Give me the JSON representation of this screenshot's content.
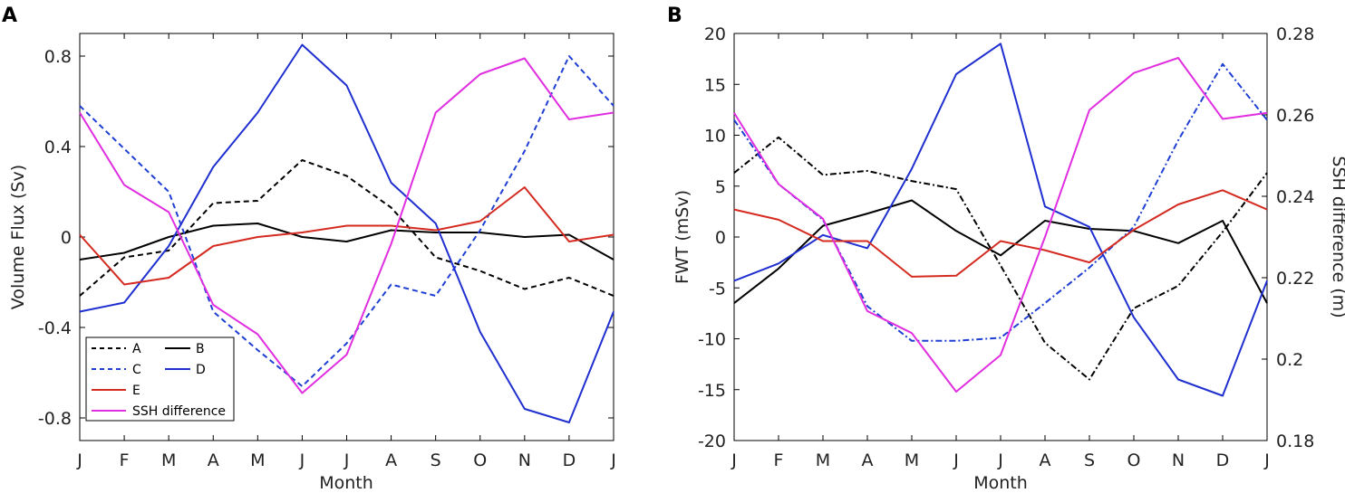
{
  "colors": {
    "A": "#000000",
    "B": "#000000",
    "C": "#1f3fd4",
    "D": "#1f2fd0",
    "E": "#d42a20",
    "SSH": "#e02ee0",
    "axis": "#000000"
  },
  "chart_data": [
    {
      "panel": "A",
      "type": "line",
      "xlabel": "Month",
      "ylabel": "Volume Flux (Sv)",
      "categories": [
        "J",
        "F",
        "M",
        "A",
        "M",
        "J",
        "J",
        "A",
        "S",
        "O",
        "N",
        "D",
        "J"
      ],
      "ylim": [
        -0.9,
        0.9
      ],
      "yticks": [
        -0.8,
        -0.4,
        0,
        0.4,
        0.8
      ],
      "ytick_labels": [
        "-0.8",
        "-0.4",
        "0",
        "0.4",
        "0.8"
      ],
      "series": [
        {
          "name": "A",
          "style": "dashed",
          "color": "#000000",
          "values": [
            -0.26,
            -0.09,
            -0.06,
            0.15,
            0.16,
            0.34,
            0.27,
            0.13,
            -0.09,
            -0.15,
            -0.23,
            -0.18,
            -0.26
          ]
        },
        {
          "name": "B",
          "style": "solid",
          "color": "#000000",
          "values": [
            -0.1,
            -0.07,
            0.0,
            0.05,
            0.06,
            0.0,
            -0.02,
            0.03,
            0.02,
            0.02,
            0.0,
            0.01,
            -0.1
          ]
        },
        {
          "name": "C",
          "style": "dashed",
          "color": "#1f3fd4",
          "values": [
            0.58,
            0.39,
            0.2,
            -0.33,
            -0.5,
            -0.66,
            -0.47,
            -0.21,
            -0.26,
            0.03,
            0.38,
            0.8,
            0.58
          ]
        },
        {
          "name": "D",
          "style": "solid",
          "color": "#1f2fd0",
          "values": [
            -0.33,
            -0.29,
            -0.04,
            0.31,
            0.55,
            0.85,
            0.67,
            0.24,
            0.06,
            -0.42,
            -0.76,
            -0.82,
            -0.33
          ]
        },
        {
          "name": "E",
          "style": "solid",
          "color": "#d42a20",
          "values": [
            0.01,
            -0.21,
            -0.18,
            -0.04,
            0.0,
            0.02,
            0.05,
            0.05,
            0.03,
            0.07,
            0.22,
            -0.02,
            0.01
          ]
        },
        {
          "name": "SSH difference",
          "style": "solid",
          "color": "#e02ee0",
          "values": [
            0.55,
            0.23,
            0.11,
            -0.3,
            -0.43,
            -0.69,
            -0.52,
            -0.03,
            0.55,
            0.72,
            0.79,
            0.52,
            0.55
          ]
        }
      ],
      "legend": {
        "placement": "bottom-left",
        "entries": [
          "A",
          "B",
          "C",
          "D",
          "E",
          "SSH difference"
        ]
      }
    },
    {
      "panel": "B",
      "type": "line",
      "xlabel": "Month",
      "ylabel": "FWT (mSv)",
      "ylabel_right": "SSH difference (m)",
      "categories": [
        "J",
        "F",
        "M",
        "A",
        "M",
        "J",
        "J",
        "A",
        "S",
        "O",
        "N",
        "D",
        "J"
      ],
      "ylim": [
        -20,
        20
      ],
      "yticks": [
        -20,
        -15,
        -10,
        -5,
        0,
        5,
        10,
        15,
        20
      ],
      "ytick_labels": [
        "-20",
        "-15",
        "-10",
        "-5",
        "0",
        "5",
        "10",
        "15",
        "20"
      ],
      "ylim_right": [
        0.18,
        0.28
      ],
      "yticks_right": [
        0.18,
        0.2,
        0.22,
        0.24,
        0.26,
        0.28
      ],
      "ytick_labels_right": [
        "0.18",
        "0.2",
        "0.22",
        "0.24",
        "0.26",
        "0.28"
      ],
      "series": [
        {
          "name": "A",
          "style": "dashdot",
          "color": "#000000",
          "axis": "left",
          "values": [
            6.3,
            9.8,
            6.1,
            6.5,
            5.5,
            4.7,
            -2.8,
            -10.4,
            -14.0,
            -7.0,
            -4.8,
            0.5,
            6.3
          ]
        },
        {
          "name": "B",
          "style": "solid",
          "color": "#000000",
          "axis": "left",
          "values": [
            -6.5,
            -3.1,
            1.1,
            2.3,
            3.6,
            0.6,
            -1.8,
            1.6,
            0.8,
            0.6,
            -0.6,
            1.6,
            -6.5
          ]
        },
        {
          "name": "C",
          "style": "dashdot",
          "color": "#1f3fd4",
          "axis": "left",
          "values": [
            11.5,
            5.2,
            1.7,
            -6.8,
            -10.2,
            -10.2,
            -9.9,
            -6.5,
            -3.0,
            1.0,
            9.5,
            17.0,
            11.5
          ]
        },
        {
          "name": "D",
          "style": "solid",
          "color": "#1f2fd0",
          "axis": "left",
          "values": [
            -4.3,
            -2.6,
            0.2,
            -1.1,
            6.7,
            16.0,
            19.0,
            3.0,
            1.0,
            -7.9,
            -14.0,
            -15.6,
            -4.3
          ]
        },
        {
          "name": "E",
          "style": "solid",
          "color": "#d42a20",
          "axis": "left",
          "values": [
            2.7,
            1.7,
            -0.4,
            -0.4,
            -3.9,
            -3.8,
            -0.4,
            -1.3,
            -2.5,
            0.7,
            3.2,
            4.6,
            2.7
          ]
        },
        {
          "name": "SSH difference",
          "style": "solid",
          "color": "#e02ee0",
          "axis": "right",
          "values": [
            0.2605,
            0.243,
            0.2345,
            0.2118,
            0.2064,
            0.192,
            0.201,
            0.23,
            0.2612,
            0.2703,
            0.274,
            0.259,
            0.2605
          ]
        }
      ]
    }
  ]
}
